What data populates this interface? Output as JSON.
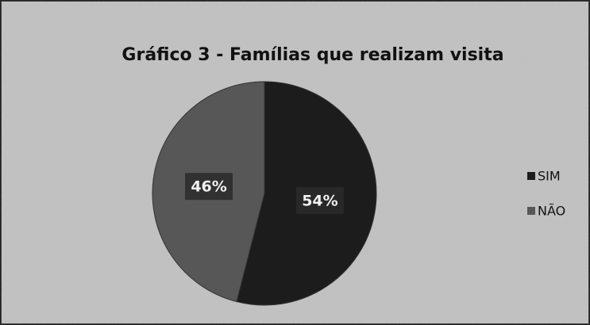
{
  "chart_data": {
    "type": "pie",
    "title": "Gráfico 3 - Famílias que realizam visita",
    "categories": [
      "SIM",
      "NÃO"
    ],
    "values": [
      54,
      46
    ],
    "value_labels": [
      "54%",
      "46%"
    ],
    "colors": [
      "#1c1c1c",
      "#575757"
    ],
    "legend": "right"
  }
}
